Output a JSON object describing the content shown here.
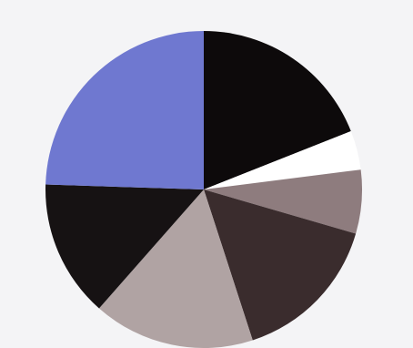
{
  "chart_data": {
    "type": "pie",
    "title": "",
    "start_angle_deg": 0,
    "direction": "clockwise",
    "slices": [
      {
        "value": 19.0,
        "color": "#0d0a0b"
      },
      {
        "value": 4.0,
        "color": "#ffffff"
      },
      {
        "value": 6.5,
        "color": "#8e7c7e"
      },
      {
        "value": 15.5,
        "color": "#3a2c2d"
      },
      {
        "value": 16.5,
        "color": "#b0a3a3"
      },
      {
        "value": 14.0,
        "color": "#161213"
      },
      {
        "value": 24.5,
        "color": "#6f78d0"
      }
    ]
  }
}
